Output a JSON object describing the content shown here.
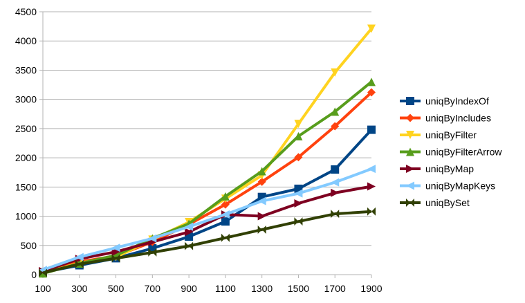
{
  "chart_data": {
    "type": "line",
    "title": "",
    "xlabel": "",
    "ylabel": "",
    "x": [
      100,
      300,
      500,
      700,
      900,
      1100,
      1300,
      1500,
      1700,
      1900
    ],
    "ylim": [
      0,
      4500
    ],
    "yticks": [
      0,
      500,
      1000,
      1500,
      2000,
      2500,
      3000,
      3500,
      4000,
      4500
    ],
    "grid": "horizontal",
    "legend_position": "right",
    "series": [
      {
        "name": "uniqByIndexOf",
        "color": "#004586",
        "marker": "square",
        "values": [
          40,
          160,
          280,
          450,
          650,
          910,
          1330,
          1470,
          1800,
          2480
        ]
      },
      {
        "name": "uniqByIncludes",
        "color": "#ff420e",
        "marker": "diamond",
        "values": [
          50,
          220,
          320,
          560,
          860,
          1200,
          1590,
          2010,
          2540,
          3120
        ]
      },
      {
        "name": "uniqByFilter",
        "color": "#ffd320",
        "marker": "triangle-down",
        "values": [
          20,
          200,
          300,
          600,
          900,
          1300,
          1700,
          2580,
          3460,
          4210
        ]
      },
      {
        "name": "uniqByFilterArrow",
        "color": "#579d1c",
        "marker": "triangle-up",
        "values": [
          20,
          190,
          330,
          620,
          870,
          1340,
          1770,
          2370,
          2790,
          3300
        ]
      },
      {
        "name": "uniqByMap",
        "color": "#7e0021",
        "marker": "triangle-right",
        "values": [
          60,
          270,
          390,
          560,
          730,
          1030,
          1000,
          1220,
          1400,
          1510
        ]
      },
      {
        "name": "uniqByMapKeys",
        "color": "#83caff",
        "marker": "triangle-left",
        "values": [
          80,
          300,
          460,
          620,
          820,
          1030,
          1260,
          1390,
          1580,
          1810
        ]
      },
      {
        "name": "uniqBySet",
        "color": "#314004",
        "marker": "bowtie",
        "values": [
          30,
          180,
          280,
          380,
          490,
          630,
          770,
          910,
          1040,
          1080
        ]
      }
    ]
  }
}
